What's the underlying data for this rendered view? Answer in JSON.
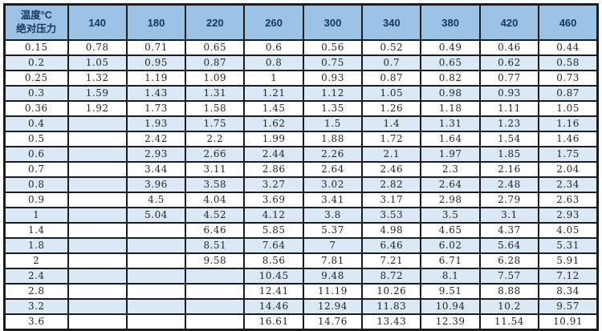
{
  "chart_data": {
    "type": "table",
    "title": "",
    "corner_header_line1": "温度°C",
    "corner_header_line2": "绝对压力",
    "column_header_meaning": "温度°C (temperature, °C)",
    "row_header_meaning": "绝对压力 (absolute pressure)",
    "categories": [
      "140",
      "180",
      "220",
      "260",
      "300",
      "340",
      "380",
      "420",
      "460"
    ],
    "rows": [
      {
        "pressure": "0.15",
        "values": [
          "0.78",
          "0.71",
          "0.65",
          "0.6",
          "0.56",
          "0.52",
          "0.49",
          "0.46",
          "0.44"
        ]
      },
      {
        "pressure": "0.2",
        "values": [
          "1.05",
          "0.95",
          "0.87",
          "0.8",
          "0.75",
          "0.7",
          "0.65",
          "0.62",
          "0.58"
        ]
      },
      {
        "pressure": "0.25",
        "values": [
          "1.32",
          "1.19",
          "1.09",
          "1",
          "0.93",
          "0.87",
          "0.82",
          "0.77",
          "0.73"
        ]
      },
      {
        "pressure": "0.3",
        "values": [
          "1.59",
          "1.43",
          "1.31",
          "1.21",
          "1.12",
          "1.05",
          "0.98",
          "0.93",
          "0.87"
        ]
      },
      {
        "pressure": "0.36",
        "values": [
          "1.92",
          "1.73",
          "1.58",
          "1.45",
          "1.35",
          "1.26",
          "1.18",
          "1.11",
          "1.05"
        ]
      },
      {
        "pressure": "0.4",
        "values": [
          "",
          "1.93",
          "1.75",
          "1.62",
          "1.5",
          "1.4",
          "1.31",
          "1.23",
          "1.16"
        ]
      },
      {
        "pressure": "0.5",
        "values": [
          "",
          "2.42",
          "2.2",
          "1.99",
          "1.88",
          "1.72",
          "1.64",
          "1.54",
          "1.46"
        ]
      },
      {
        "pressure": "0.6",
        "values": [
          "",
          "2.93",
          "2.66",
          "2.44",
          "2.26",
          "2.1",
          "1.97",
          "1.85",
          "1.75"
        ]
      },
      {
        "pressure": "0.7",
        "values": [
          "",
          "3.44",
          "3.11",
          "2.86",
          "2.64",
          "2.46",
          "2.3",
          "2.16",
          "2.04"
        ]
      },
      {
        "pressure": "0.8",
        "values": [
          "",
          "3.96",
          "3.58",
          "3.27",
          "3.02",
          "2.82",
          "2.64",
          "2.48",
          "2.34"
        ]
      },
      {
        "pressure": "0.9",
        "values": [
          "",
          "4.5",
          "4.04",
          "3.69",
          "3.41",
          "3.17",
          "2.98",
          "2.79",
          "2.63"
        ]
      },
      {
        "pressure": "1",
        "values": [
          "",
          "5.04",
          "4.52",
          "4.12",
          "3.8",
          "3.53",
          "3.5",
          "3.1",
          "2.93"
        ]
      },
      {
        "pressure": "1.4",
        "values": [
          "",
          "",
          "6.46",
          "5.85",
          "5.37",
          "4.98",
          "4.65",
          "4.37",
          "4.05"
        ]
      },
      {
        "pressure": "1.8",
        "values": [
          "",
          "",
          "8.51",
          "7.64",
          "7",
          "6.46",
          "6.02",
          "5.64",
          "5.31"
        ]
      },
      {
        "pressure": "2",
        "values": [
          "",
          "",
          "9.58",
          "8.56",
          "7.81",
          "7.21",
          "6.71",
          "6.28",
          "5.91"
        ]
      },
      {
        "pressure": "2.4",
        "values": [
          "",
          "",
          "",
          "10.45",
          "9.48",
          "8.72",
          "8.1",
          "7.57",
          "7.12"
        ]
      },
      {
        "pressure": "2.8",
        "values": [
          "",
          "",
          "",
          "12.41",
          "11.19",
          "10.26",
          "9.51",
          "8.88",
          "8.34"
        ]
      },
      {
        "pressure": "3.2",
        "values": [
          "",
          "",
          "",
          "14.46",
          "12.94",
          "11.83",
          "10.94",
          "10.2",
          "9.57"
        ]
      },
      {
        "pressure": "3.6",
        "values": [
          "",
          "",
          "",
          "16.61",
          "14.76",
          "13.43",
          "12.39",
          "11.54",
          "10.91"
        ]
      }
    ],
    "layout": {
      "grid": "on",
      "banding": "alternating white / light blue starting with white",
      "colors": {
        "header_background": "#9CC2E5",
        "band_background": "#DBE8F6",
        "white_row_background": "#FFFFFF",
        "border": "#1C1C1C",
        "header_text": "#17375E",
        "body_text": "#262626"
      }
    }
  }
}
